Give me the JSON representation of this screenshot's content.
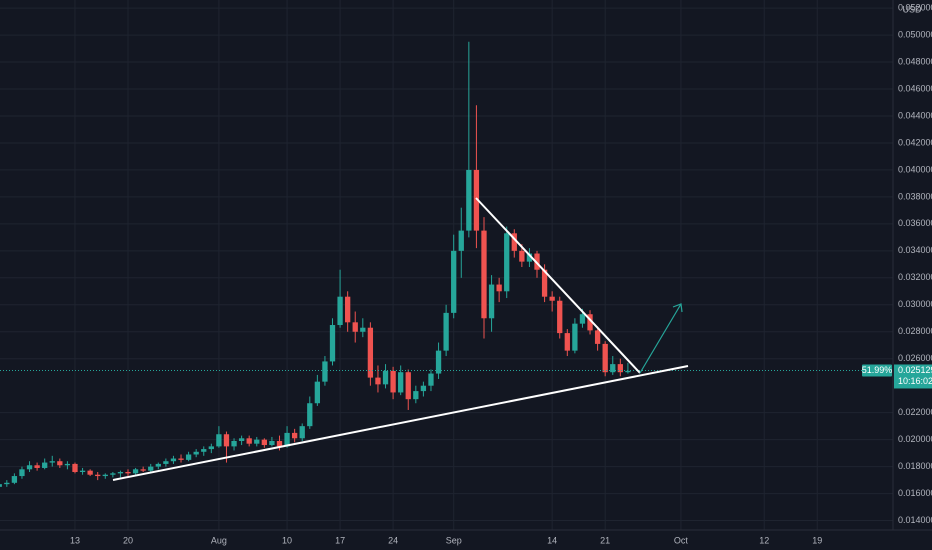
{
  "chart_data": {
    "type": "candlestick",
    "currency": "USD",
    "x": [
      2,
      3,
      4,
      5,
      6,
      7,
      8,
      9,
      10,
      11,
      12,
      13,
      14,
      15,
      16,
      17,
      18,
      19,
      20,
      21,
      22,
      23,
      24,
      25,
      26,
      27,
      28,
      29,
      30,
      31,
      32,
      33,
      34,
      35,
      36,
      37,
      38,
      39,
      40,
      41,
      42,
      43,
      44,
      45,
      46,
      47,
      48,
      49,
      50,
      51,
      52,
      53,
      54,
      55,
      56,
      57,
      58,
      59,
      60,
      61,
      62,
      63,
      64,
      65,
      66,
      67,
      68,
      69,
      70,
      71,
      72,
      73,
      74,
      75,
      76,
      77,
      78,
      79,
      80,
      81,
      82,
      83,
      84,
      85
    ],
    "open": [
      0.0165,
      0.0167,
      0.0168,
      0.0173,
      0.0178,
      0.0181,
      0.0179,
      0.0183,
      0.0184,
      0.0181,
      0.0182,
      0.0176,
      0.0177,
      0.0174,
      0.0173,
      0.0174,
      0.0175,
      0.0176,
      0.0175,
      0.0178,
      0.0177,
      0.018,
      0.0182,
      0.0184,
      0.0186,
      0.0185,
      0.0189,
      0.0191,
      0.0193,
      0.0195,
      0.0204,
      0.0195,
      0.0199,
      0.0201,
      0.0197,
      0.02,
      0.0196,
      0.0199,
      0.0195,
      0.0205,
      0.0201,
      0.021,
      0.0227,
      0.0243,
      0.0258,
      0.0285,
      0.0306,
      0.0287,
      0.028,
      0.0283,
      0.0246,
      0.0241,
      0.0251,
      0.0235,
      0.025,
      0.023,
      0.0236,
      0.024,
      0.0249,
      0.0266,
      0.0294,
      0.034,
      0.0355,
      0.04,
      0.0355,
      0.029,
      0.0315,
      0.031,
      0.0353,
      0.034,
      0.0332,
      0.0338,
      0.0326,
      0.0306,
      0.0303,
      0.0279,
      0.0266,
      0.0286,
      0.0293,
      0.0281,
      0.0271,
      0.025,
      0.0256,
      0.025
    ],
    "high": [
      0.0168,
      0.017,
      0.0175,
      0.018,
      0.0184,
      0.0183,
      0.0186,
      0.0188,
      0.0186,
      0.0184,
      0.0183,
      0.0179,
      0.0178,
      0.0176,
      0.0175,
      0.0176,
      0.0177,
      0.0178,
      0.0179,
      0.018,
      0.0182,
      0.0183,
      0.0186,
      0.0188,
      0.0189,
      0.0191,
      0.0193,
      0.0195,
      0.0197,
      0.021,
      0.0206,
      0.0201,
      0.0203,
      0.0203,
      0.0202,
      0.0201,
      0.0202,
      0.0203,
      0.021,
      0.0208,
      0.0212,
      0.0232,
      0.0248,
      0.0262,
      0.029,
      0.0326,
      0.031,
      0.0295,
      0.029,
      0.0287,
      0.0255,
      0.0256,
      0.0254,
      0.0255,
      0.0252,
      0.024,
      0.0243,
      0.0252,
      0.0272,
      0.03,
      0.0352,
      0.0372,
      0.0495,
      0.0448,
      0.0365,
      0.0322,
      0.032,
      0.0358,
      0.0356,
      0.0345,
      0.0342,
      0.034,
      0.033,
      0.031,
      0.0306,
      0.0282,
      0.029,
      0.0297,
      0.0296,
      0.0284,
      0.0273,
      0.0262,
      0.026,
      0.0257
    ],
    "low": [
      0.0163,
      0.0165,
      0.0167,
      0.0171,
      0.0176,
      0.0177,
      0.0178,
      0.018,
      0.0179,
      0.0178,
      0.0175,
      0.0174,
      0.0173,
      0.017,
      0.0171,
      0.0172,
      0.0172,
      0.0173,
      0.0174,
      0.0176,
      0.0176,
      0.0178,
      0.018,
      0.0182,
      0.0183,
      0.0184,
      0.0187,
      0.0188,
      0.019,
      0.0194,
      0.0183,
      0.0192,
      0.0196,
      0.0195,
      0.0195,
      0.0194,
      0.0195,
      0.0192,
      0.0194,
      0.0198,
      0.0199,
      0.0208,
      0.0225,
      0.024,
      0.0255,
      0.0283,
      0.028,
      0.0272,
      0.0276,
      0.024,
      0.0235,
      0.0238,
      0.023,
      0.0233,
      0.0222,
      0.0227,
      0.0232,
      0.0236,
      0.0245,
      0.0262,
      0.029,
      0.032,
      0.035,
      0.0342,
      0.0275,
      0.028,
      0.0302,
      0.0305,
      0.0335,
      0.0328,
      0.0328,
      0.032,
      0.0302,
      0.0295,
      0.0275,
      0.0262,
      0.0264,
      0.0283,
      0.0278,
      0.0266,
      0.0247,
      0.0248,
      0.0247,
      0.0249
    ],
    "close": [
      0.0167,
      0.0168,
      0.0173,
      0.0178,
      0.0181,
      0.0179,
      0.0183,
      0.0184,
      0.0181,
      0.0182,
      0.0176,
      0.0177,
      0.0174,
      0.0173,
      0.0174,
      0.0175,
      0.0176,
      0.0175,
      0.0178,
      0.0177,
      0.018,
      0.0182,
      0.0184,
      0.0186,
      0.0185,
      0.0189,
      0.0191,
      0.0193,
      0.0195,
      0.0204,
      0.0195,
      0.0199,
      0.0201,
      0.0197,
      0.02,
      0.0196,
      0.0199,
      0.0195,
      0.0205,
      0.0201,
      0.021,
      0.0227,
      0.0243,
      0.0258,
      0.0285,
      0.0306,
      0.0287,
      0.028,
      0.0283,
      0.0246,
      0.0241,
      0.0251,
      0.0235,
      0.025,
      0.023,
      0.0236,
      0.024,
      0.0249,
      0.0266,
      0.0294,
      0.034,
      0.0355,
      0.04,
      0.0355,
      0.029,
      0.0315,
      0.031,
      0.0353,
      0.034,
      0.0332,
      0.0338,
      0.0326,
      0.0306,
      0.0303,
      0.0279,
      0.0266,
      0.0286,
      0.0293,
      0.0281,
      0.0271,
      0.025,
      0.0256,
      0.025,
      0.0251
    ],
    "up_color": "#26a69a",
    "down_color": "#ef5350",
    "xlim": [
      2.1,
      120
    ],
    "xticks": [
      {
        "value": 12,
        "label": "13"
      },
      {
        "value": 19,
        "label": "20"
      },
      {
        "value": 31,
        "label": "Aug"
      },
      {
        "value": 40,
        "label": "10"
      },
      {
        "value": 47,
        "label": "17"
      },
      {
        "value": 54,
        "label": "24"
      },
      {
        "value": 62,
        "label": "Sep"
      },
      {
        "value": 75,
        "label": "14"
      },
      {
        "value": 82,
        "label": "21"
      },
      {
        "value": 92,
        "label": "Oct"
      },
      {
        "value": 103,
        "label": "12"
      },
      {
        "value": 110,
        "label": "19"
      }
    ],
    "ylim": [
      0.0133,
      0.0526
    ],
    "yticks": [
      {
        "value": 0.014,
        "label": "0.014000"
      },
      {
        "value": 0.016,
        "label": "0.016000"
      },
      {
        "value": 0.018,
        "label": "0.018000"
      },
      {
        "value": 0.02,
        "label": "0.020000"
      },
      {
        "value": 0.022,
        "label": "0.022000"
      },
      {
        "value": 0.026,
        "label": "0.026000"
      },
      {
        "value": 0.028,
        "label": "0.028000"
      },
      {
        "value": 0.03,
        "label": "0.030000"
      },
      {
        "value": 0.032,
        "label": "0.032000"
      },
      {
        "value": 0.034,
        "label": "0.034000"
      },
      {
        "value": 0.036,
        "label": "0.036000"
      },
      {
        "value": 0.038,
        "label": "0.038000"
      },
      {
        "value": 0.04,
        "label": "0.040000"
      },
      {
        "value": 0.042,
        "label": "0.042000"
      },
      {
        "value": 0.044,
        "label": "0.044000"
      },
      {
        "value": 0.046,
        "label": "0.046000"
      },
      {
        "value": 0.048,
        "label": "0.048000"
      },
      {
        "value": 0.05,
        "label": "0.050000"
      },
      {
        "value": 0.052,
        "label": "0.052000"
      }
    ],
    "grid": true,
    "last_price": 0.025129,
    "change_label": "51.99%",
    "countdown": "10:16:02"
  }
}
